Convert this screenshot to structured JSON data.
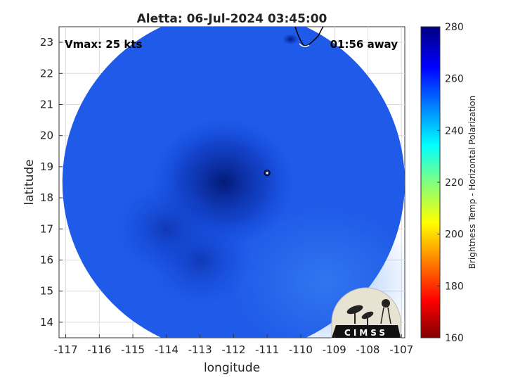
{
  "chart_data": {
    "type": "heatmap",
    "title": "Aletta: 06-Jul-2024 03:45:00",
    "xlabel": "longitude",
    "ylabel": "latitude",
    "xlim": [
      -117.2,
      -106.9
    ],
    "ylim": [
      13.5,
      23.5
    ],
    "x_ticks": [
      -117,
      -116,
      -115,
      -114,
      -113,
      -112,
      -111,
      -110,
      -109,
      -108,
      -107
    ],
    "y_ticks": [
      14,
      15,
      16,
      17,
      18,
      19,
      20,
      21,
      22,
      23
    ],
    "grid": true,
    "storm_center": {
      "lon": -111.0,
      "lat": 18.8
    },
    "data_disk": {
      "center_lon": -112.0,
      "center_lat": 18.5,
      "radius_deg": 5.1
    },
    "cold_cores": [
      {
        "lon": -112.3,
        "lat": 18.5,
        "value": 270
      },
      {
        "lon": -113.0,
        "lat": 16.0,
        "value": 265
      },
      {
        "lon": -114.0,
        "lat": 17.0,
        "value": 262
      }
    ],
    "background_value": 254,
    "annotations": {
      "vmax": "Vmax: 25 kts",
      "time_away": "01:56 away"
    },
    "colorbar": {
      "label": "Brightness Temp - Horizontal Polarization",
      "min": 160,
      "max": 280,
      "ticks": [
        160,
        180,
        200,
        220,
        240,
        260,
        280
      ],
      "colormap": "jet"
    },
    "logo_text": "CIMSS"
  }
}
